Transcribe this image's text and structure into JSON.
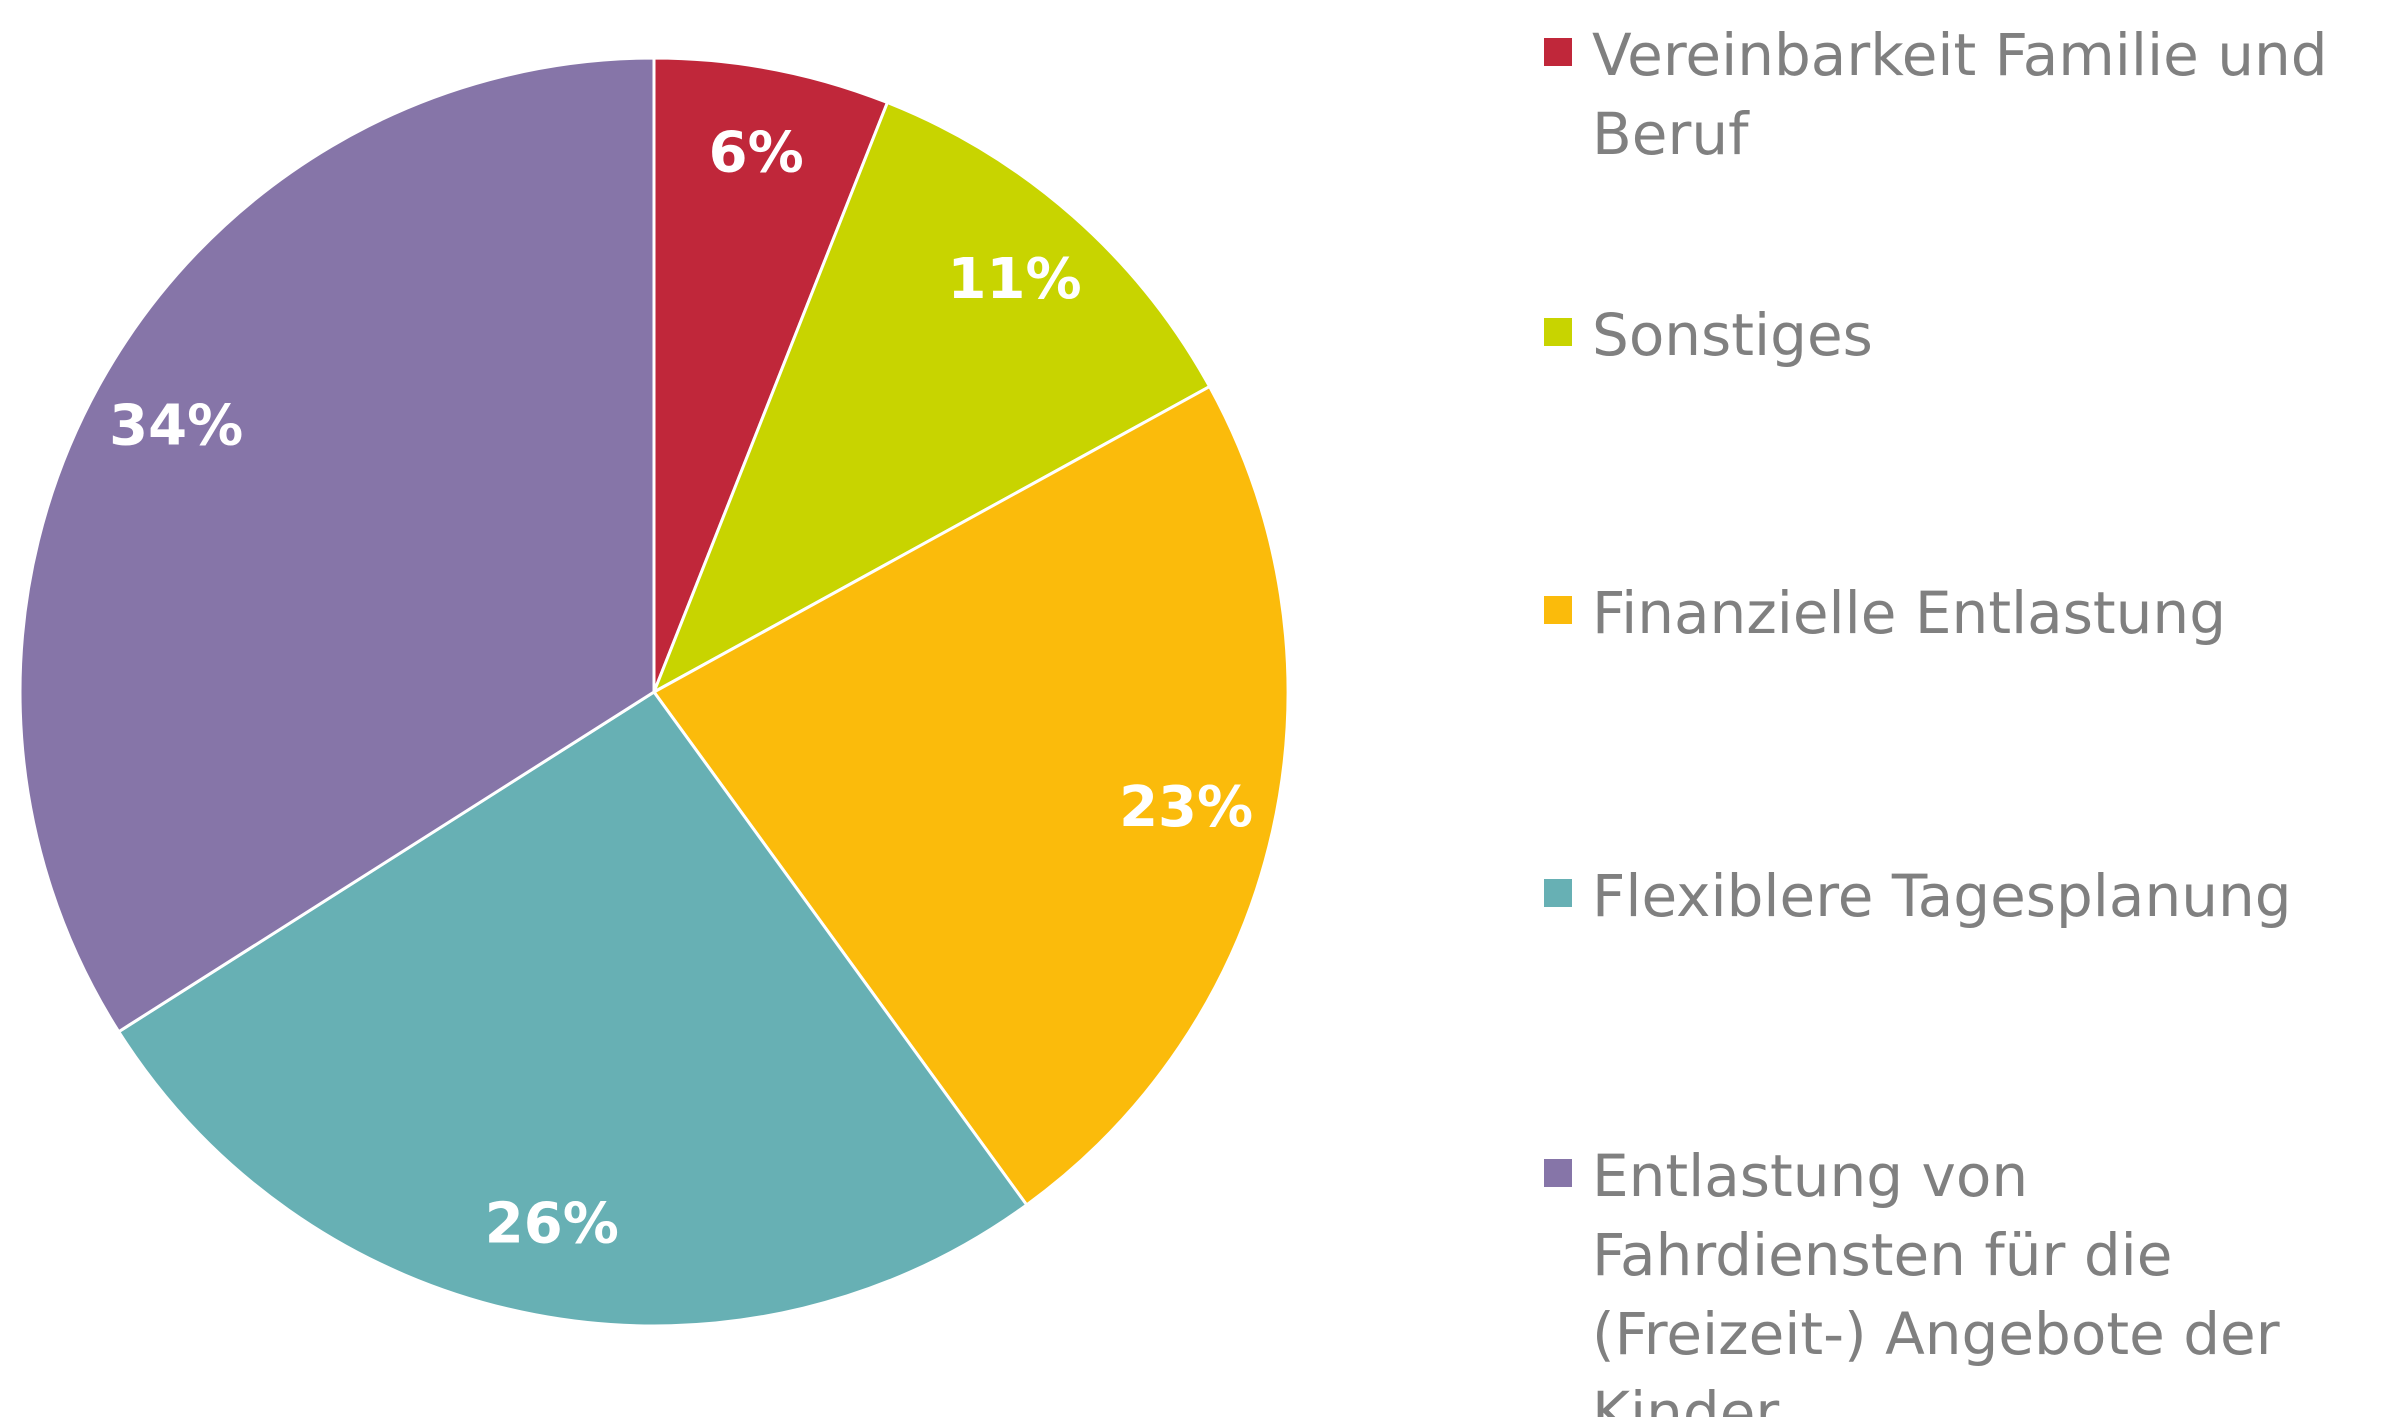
{
  "chart_data": {
    "type": "pie",
    "categories": [
      "Vereinbarkeit Familie und Beruf",
      "Sonstiges",
      "Finanzielle Entlastung",
      "Flexiblere Tagesplanung",
      "Entlastung von Fahrdiensten für die (Freizeit-) Angebote der Kinder"
    ],
    "values": [
      6,
      11,
      23,
      26,
      34
    ],
    "value_labels": [
      "6%",
      "11%",
      "23%",
      "26%",
      "34%"
    ],
    "colors": [
      "#c0273a",
      "#c8d400",
      "#fbbb0b",
      "#67b0b4",
      "#8675a8"
    ],
    "legend": "right"
  }
}
